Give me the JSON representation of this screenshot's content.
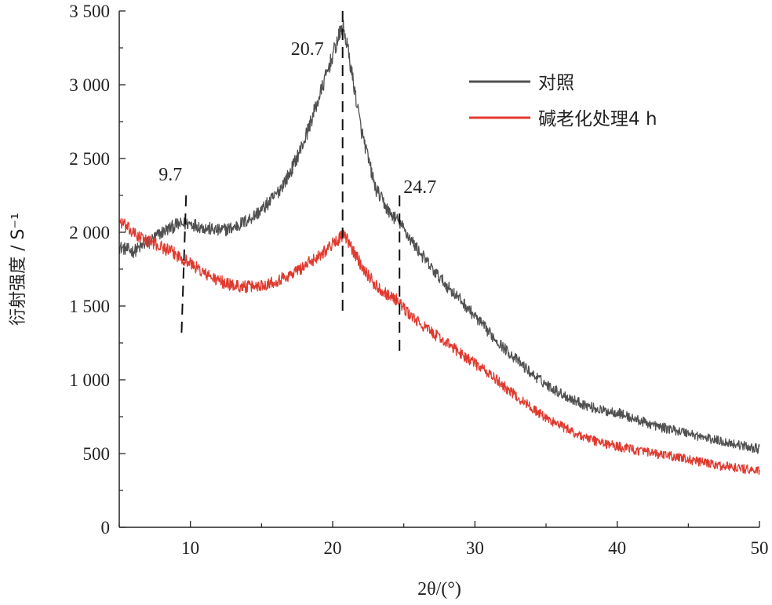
{
  "chart_data": {
    "type": "line",
    "xlabel": "2θ/(°)",
    "ylabel": "衍射强度 / S⁻¹",
    "xlim": [
      5,
      50
    ],
    "ylim": [
      0,
      3500
    ],
    "x_ticks": [
      10,
      20,
      30,
      40,
      50
    ],
    "x_tick_labels": [
      "10",
      "20",
      "30",
      "40",
      "50"
    ],
    "y_ticks": [
      0,
      500,
      1000,
      1500,
      2000,
      2500,
      3000,
      3500
    ],
    "y_tick_labels": [
      "0",
      "500",
      "1 000",
      "1 500",
      "2 000",
      "2 500",
      "3 000",
      "3 500"
    ],
    "grid": false,
    "legend_position": "top-right",
    "series": [
      {
        "name": "对照",
        "color": "#505050",
        "x": [
          5,
          6,
          7,
          8,
          9,
          10,
          11,
          12,
          13,
          14,
          15,
          16,
          17,
          18,
          19,
          20,
          20.7,
          21,
          22,
          23,
          24,
          24.7,
          25,
          26,
          27,
          28,
          29,
          30,
          31,
          32,
          33,
          34,
          35,
          36,
          37,
          38,
          39,
          40,
          41,
          42,
          43,
          44,
          45,
          46,
          47,
          48,
          49,
          50
        ],
        "y": [
          1900,
          1870,
          1930,
          2000,
          2050,
          2060,
          2030,
          2010,
          2030,
          2080,
          2150,
          2250,
          2400,
          2620,
          2900,
          3200,
          3400,
          3280,
          2700,
          2300,
          2130,
          2070,
          2020,
          1880,
          1750,
          1640,
          1540,
          1430,
          1320,
          1220,
          1130,
          1040,
          970,
          910,
          860,
          820,
          790,
          780,
          740,
          710,
          680,
          660,
          640,
          610,
          590,
          570,
          550,
          530
        ]
      },
      {
        "name": "碱老化处理4 h",
        "color": "#e03a2f",
        "x": [
          5,
          6,
          7,
          8,
          9,
          10,
          11,
          12,
          13,
          14,
          15,
          16,
          17,
          18,
          19,
          20,
          20.7,
          21,
          22,
          23,
          24,
          24.7,
          25,
          26,
          27,
          28,
          29,
          30,
          31,
          32,
          33,
          34,
          35,
          36,
          37,
          38,
          39,
          40,
          41,
          42,
          43,
          44,
          45,
          46,
          47,
          48,
          49,
          50
        ],
        "y": [
          2080,
          1990,
          1940,
          1900,
          1850,
          1790,
          1720,
          1670,
          1640,
          1630,
          1640,
          1670,
          1710,
          1770,
          1840,
          1920,
          1980,
          1950,
          1780,
          1640,
          1570,
          1530,
          1480,
          1390,
          1320,
          1250,
          1180,
          1110,
          1040,
          960,
          880,
          810,
          740,
          690,
          640,
          600,
          570,
          550,
          530,
          510,
          490,
          480,
          460,
          440,
          420,
          410,
          395,
          380
        ]
      }
    ],
    "vlines": [
      {
        "x": 9.7,
        "label": "9.7",
        "y_top": 2250,
        "y_bottom": 1290
      },
      {
        "x": 20.7,
        "label": "20.7",
        "y_top": 3500,
        "y_bottom": 1420
      },
      {
        "x": 24.7,
        "label": "24.7",
        "y_top": 2250,
        "y_bottom": 1150
      }
    ],
    "noise_amplitude": 45
  }
}
